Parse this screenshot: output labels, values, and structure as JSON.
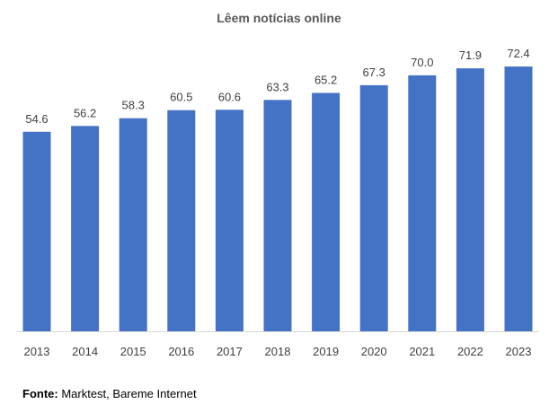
{
  "chart_data": {
    "type": "bar",
    "title": "Lêem notícias online",
    "categories": [
      "2013",
      "2014",
      "2015",
      "2016",
      "2017",
      "2018",
      "2019",
      "2020",
      "2021",
      "2022",
      "2023"
    ],
    "values": [
      54.6,
      56.2,
      58.3,
      60.5,
      60.6,
      63.3,
      65.2,
      67.3,
      70.0,
      71.9,
      72.4
    ],
    "value_labels": [
      "54.6",
      "56.2",
      "58.3",
      "60.5",
      "60.6",
      "63.3",
      "65.2",
      "67.3",
      "70.0",
      "71.9",
      "72.4"
    ],
    "ylim": [
      0,
      80
    ],
    "grid": false,
    "legend": "none",
    "bar_color": "#4472C4",
    "label_color": "#404040"
  },
  "source": {
    "label": "Fonte:",
    "text": " Marktest, Bareme Internet"
  }
}
